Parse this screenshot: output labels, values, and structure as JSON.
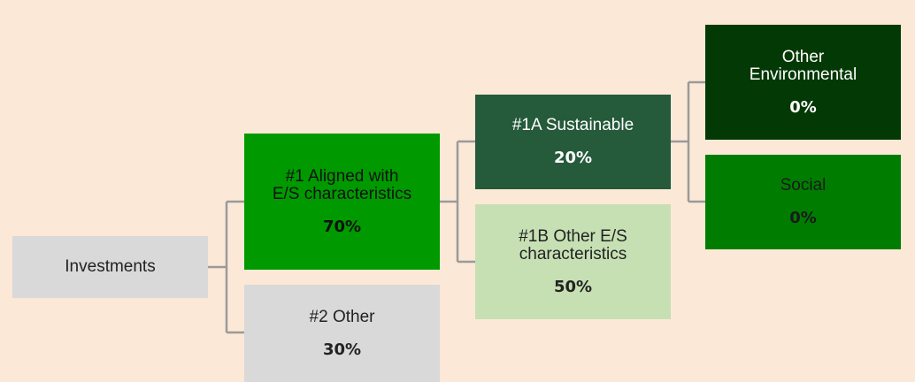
{
  "nodes": [
    {
      "label": "Investments"
    },
    {
      "label": "#1 Aligned with E/S characteristics",
      "value": "70%"
    },
    {
      "label": "#2 Other",
      "value": "30%"
    },
    {
      "label": "#1A Sustainable",
      "value": "20%"
    },
    {
      "label": "#1B Other E/S characteristics",
      "value": "50%"
    },
    {
      "label": "Other Environmental",
      "value": "0%"
    },
    {
      "label": "Social",
      "value": "0%"
    }
  ]
}
